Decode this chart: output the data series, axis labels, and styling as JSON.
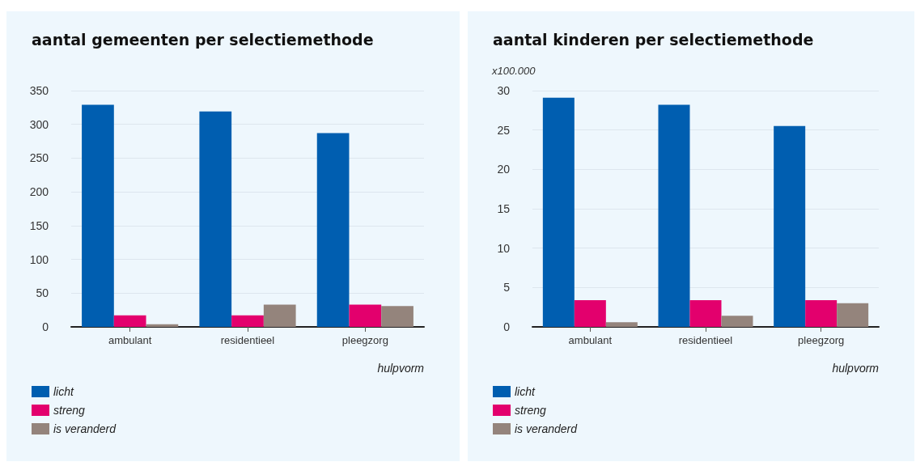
{
  "chart_data": [
    {
      "type": "bar",
      "title": "aantal gemeenten per selectiemethode",
      "xlabel": "hulpvorm",
      "categories": [
        "ambulant",
        "residentieel",
        "pleegzorg"
      ],
      "series": [
        {
          "name": "licht",
          "color": "#005eb0",
          "values": [
            329,
            319,
            287
          ]
        },
        {
          "name": "streng",
          "color": "#e3006d",
          "values": [
            17,
            17,
            33
          ]
        },
        {
          "name": "is veranderd",
          "color": "#94847c",
          "values": [
            4,
            33,
            31
          ]
        }
      ],
      "ylim": [
        0,
        350
      ],
      "yticks": [
        0,
        50,
        100,
        150,
        200,
        250,
        300,
        350
      ],
      "grid": "y",
      "legend": "bottom"
    },
    {
      "type": "bar",
      "title": "aantal kinderen per selectiemethode",
      "xlabel": "hulpvorm",
      "ylabel": "x100.000",
      "categories": [
        "ambulant",
        "residentieel",
        "pleegzorg"
      ],
      "series": [
        {
          "name": "licht",
          "color": "#005eb0",
          "values": [
            29.1,
            28.2,
            25.5
          ]
        },
        {
          "name": "streng",
          "color": "#e3006d",
          "values": [
            3.4,
            3.4,
            3.4
          ]
        },
        {
          "name": "is veranderd",
          "color": "#94847c",
          "values": [
            0.6,
            1.4,
            3.0
          ]
        }
      ],
      "ylim": [
        0,
        30
      ],
      "yticks": [
        0,
        5,
        10,
        15,
        20,
        25,
        30
      ],
      "grid": "y",
      "legend": "bottom"
    }
  ]
}
